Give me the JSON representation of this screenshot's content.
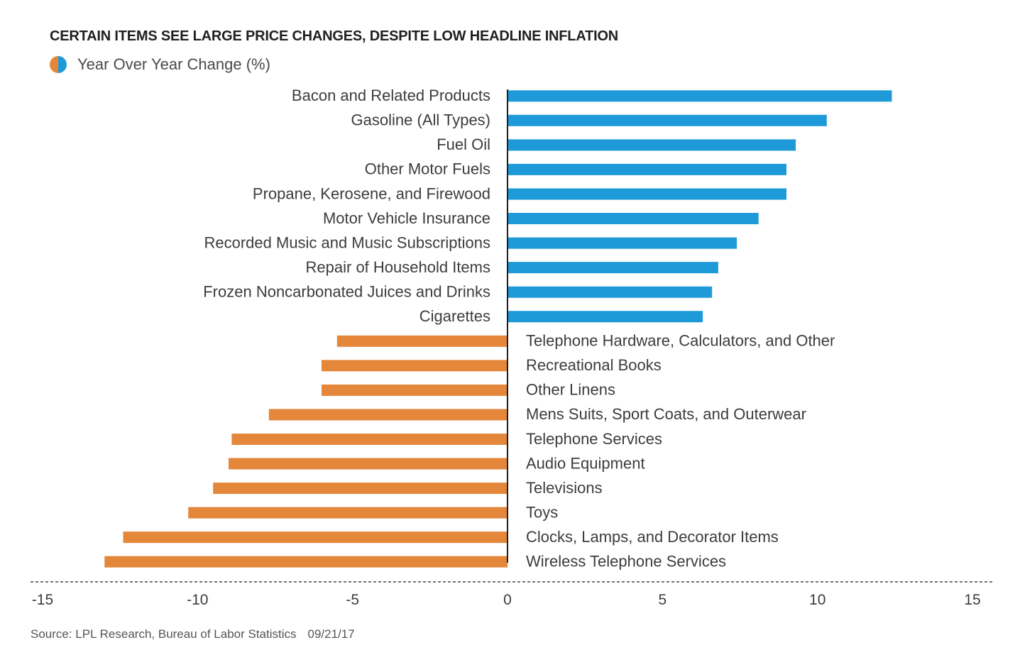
{
  "colors": {
    "positive": "#1f9ad8",
    "negative": "#e5873a",
    "axis": "#1f1f1f",
    "text": "#3c3c3c"
  },
  "source": {
    "text": "Source: LPL Research, Bureau of Labor Statistics",
    "date": "09/21/17"
  },
  "chart_data": {
    "type": "bar",
    "orientation": "horizontal",
    "title": "CERTAIN ITEMS SEE LARGE PRICE CHANGES, DESPITE LOW HEADLINE INFLATION",
    "xlabel": "",
    "ylabel": "",
    "xlim": [
      -15,
      15
    ],
    "xticks": [
      -15,
      -10,
      -5,
      0,
      5,
      10,
      15
    ],
    "grid": false,
    "legend_placement": "top-left",
    "series": [
      {
        "name": "Year Over Year Change (%)",
        "values": [
          12.4,
          10.3,
          9.3,
          9.0,
          9.0,
          8.1,
          7.4,
          6.8,
          6.6,
          6.3,
          -5.5,
          -6.0,
          -6.0,
          -7.7,
          -8.9,
          -9.0,
          -9.5,
          -10.3,
          -12.4,
          -13.0
        ]
      }
    ],
    "categories": [
      "Bacon and Related Products",
      "Gasoline (All Types)",
      "Fuel Oil",
      "Other Motor Fuels",
      "Propane, Kerosene, and Firewood",
      "Motor Vehicle Insurance",
      "Recorded Music and Music Subscriptions",
      "Repair of Household Items",
      "Frozen Noncarbonated Juices and Drinks",
      "Cigarettes",
      "Telephone Hardware, Calculators, and Other",
      "Recreational Books",
      "Other Linens",
      "Mens Suits, Sport Coats, and Outerwear",
      "Telephone Services",
      "Audio Equipment",
      "Televisions",
      "Toys",
      "Clocks, Lamps, and Decorator Items",
      "Wireless Telephone Services"
    ]
  }
}
